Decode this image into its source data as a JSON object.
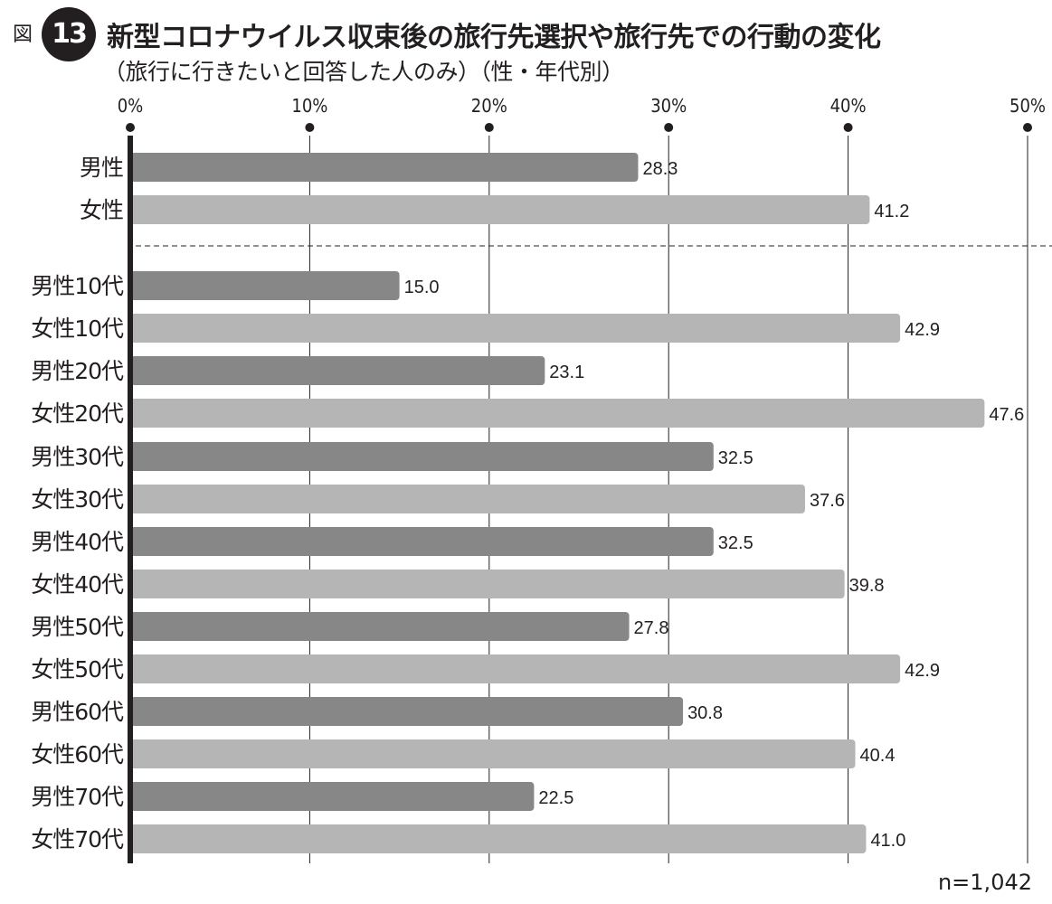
{
  "header": {
    "fig_label": "図",
    "fig_number": "13",
    "title": "新型コロナウイルス収束後の旅行先選択や旅行先での行動の変化",
    "subtitle": "（旅行に行きたいと回答した人のみ）（性・年代別）"
  },
  "note": "n=1,042",
  "colors": {
    "male": "#878787",
    "female": "#b5b5b5",
    "axis": "#231f20",
    "grid": "#231f20"
  },
  "chart_data": {
    "type": "bar",
    "orientation": "horizontal",
    "xlim": [
      0,
      50
    ],
    "ticks": [
      0,
      10,
      20,
      30,
      40,
      50
    ],
    "tick_labels": [
      "0%",
      "10%",
      "20%",
      "30%",
      "40%",
      "50%"
    ],
    "groups": [
      {
        "rows": [
          {
            "label": "男性",
            "value": 28.3,
            "value_label": "28.3",
            "series": "male"
          },
          {
            "label": "女性",
            "value": 41.2,
            "value_label": "41.2",
            "series": "female"
          }
        ]
      },
      {
        "rows": [
          {
            "label": "男性10代",
            "value": 15.0,
            "value_label": "15.0",
            "series": "male"
          },
          {
            "label": "女性10代",
            "value": 42.9,
            "value_label": "42.9",
            "series": "female"
          }
        ]
      },
      {
        "rows": [
          {
            "label": "男性20代",
            "value": 23.1,
            "value_label": "23.1",
            "series": "male"
          },
          {
            "label": "女性20代",
            "value": 47.6,
            "value_label": "47.6",
            "series": "female"
          }
        ]
      },
      {
        "rows": [
          {
            "label": "男性30代",
            "value": 32.5,
            "value_label": "32.5",
            "series": "male"
          },
          {
            "label": "女性30代",
            "value": 37.6,
            "value_label": "37.6",
            "series": "female"
          }
        ]
      },
      {
        "rows": [
          {
            "label": "男性40代",
            "value": 32.5,
            "value_label": "32.5",
            "series": "male"
          },
          {
            "label": "女性40代",
            "value": 39.8,
            "value_label": "39.8",
            "series": "female"
          }
        ]
      },
      {
        "rows": [
          {
            "label": "男性50代",
            "value": 27.8,
            "value_label": "27.8",
            "series": "male"
          },
          {
            "label": "女性50代",
            "value": 42.9,
            "value_label": "42.9",
            "series": "female"
          }
        ]
      },
      {
        "rows": [
          {
            "label": "男性60代",
            "value": 30.8,
            "value_label": "30.8",
            "series": "male"
          },
          {
            "label": "女性60代",
            "value": 40.4,
            "value_label": "40.4",
            "series": "female"
          }
        ]
      },
      {
        "rows": [
          {
            "label": "男性70代",
            "value": 22.5,
            "value_label": "22.5",
            "series": "male"
          },
          {
            "label": "女性70代",
            "value": 41.0,
            "value_label": "41.0",
            "series": "female"
          }
        ]
      }
    ],
    "separator_after_group": 0,
    "grid": true
  }
}
